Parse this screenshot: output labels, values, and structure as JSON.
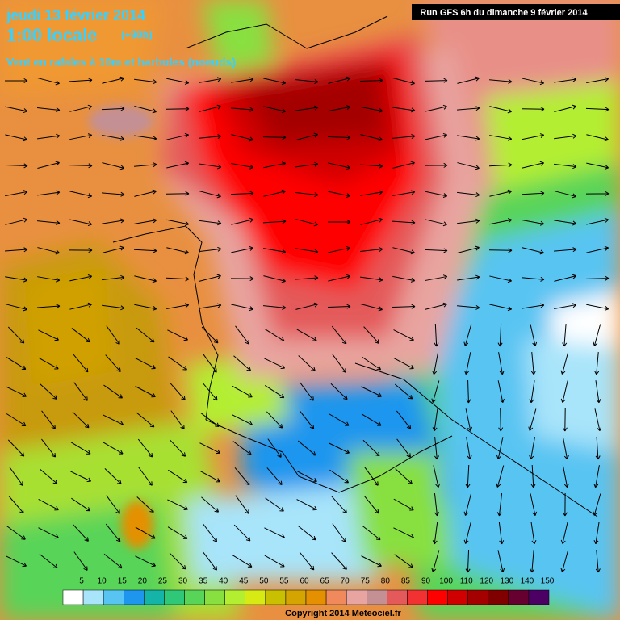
{
  "header": {
    "date": "jeudi 13 février 2014",
    "time": "1:00 locale",
    "lead": "(+90h)",
    "subtitle": "Vent en rafales à 10m et barbules (noeuds)",
    "run": "Run GFS 6h du dimanche 9 février 2014"
  },
  "legend": {
    "labels": [
      5,
      10,
      15,
      20,
      25,
      30,
      35,
      40,
      45,
      50,
      55,
      60,
      65,
      70,
      75,
      80,
      85,
      90,
      100,
      110,
      120,
      130,
      140,
      150
    ],
    "colors": [
      "#ffffff",
      "#a8e4fa",
      "#58c4f2",
      "#1e96ee",
      "#14b4a8",
      "#2ec878",
      "#58d458",
      "#88e040",
      "#b4ee30",
      "#d8ea14",
      "#c8c000",
      "#d4a400",
      "#e49000",
      "#f08a5c",
      "#e8a4a0",
      "#c49094",
      "#e45a5a",
      "#f23232",
      "#ff0000",
      "#d00000",
      "#a40000",
      "#800000",
      "#660030",
      "#4c0064"
    ]
  },
  "footer": {
    "copyright": "Copyright 2014 Meteociel.fr"
  }
}
